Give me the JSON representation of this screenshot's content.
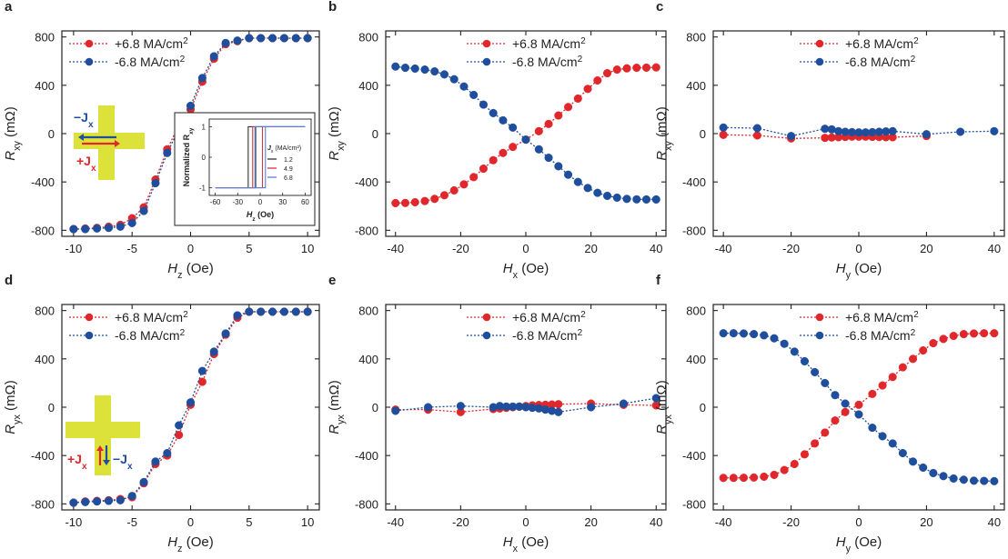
{
  "figure": {
    "colors": {
      "red": "#e0282c",
      "blue": "#1f4e9c",
      "cross": "#dde23a",
      "axis": "#222222"
    }
  },
  "chart_data": [
    {
      "panel": "a",
      "type": "line",
      "xlabel": "H",
      "xlabel_sub": "z",
      "xlabel_unit": "(Oe)",
      "ylabel": "R",
      "ylabel_sub": "xy",
      "ylabel_unit": "(mΩ)",
      "xlim": [
        -11,
        11
      ],
      "ylim": [
        -850,
        850
      ],
      "xticks": [
        -10,
        -5,
        0,
        5,
        10
      ],
      "yticks": [
        -800,
        -400,
        0,
        400,
        800
      ],
      "legend_position": "top-left",
      "series": [
        {
          "name": "+6.8 MA/cm",
          "sup": "2",
          "color": "red",
          "x": [
            -10,
            -9,
            -8,
            -7,
            -6,
            -5,
            -4,
            -3,
            -2,
            -1,
            0,
            1,
            2,
            3,
            4,
            5,
            6,
            7,
            8,
            9,
            10
          ],
          "y": [
            -790,
            -785,
            -780,
            -770,
            -755,
            -700,
            -610,
            -380,
            -130,
            70,
            200,
            430,
            620,
            740,
            765,
            790,
            790,
            790,
            790,
            790,
            790
          ]
        },
        {
          "name": "-6.8 MA/cm",
          "sup": "2",
          "color": "blue",
          "x": [
            -10,
            -9,
            -8,
            -7,
            -6,
            -5,
            -4,
            -3,
            -2,
            -1,
            0,
            1,
            2,
            3,
            4,
            5,
            6,
            7,
            8,
            9,
            10
          ],
          "y": [
            -790,
            -790,
            -785,
            -780,
            -770,
            -740,
            -640,
            -410,
            -160,
            40,
            230,
            460,
            640,
            750,
            770,
            790,
            790,
            790,
            790,
            790,
            790
          ]
        }
      ],
      "schematic": {
        "type": "cross-h",
        "labels": [
          "−J",
          "+J"
        ],
        "subs": [
          "x",
          "x"
        ],
        "colors": [
          "blue",
          "red"
        ]
      },
      "inset": {
        "xlabel": "H",
        "xlabel_sub": "z",
        "xlabel_unit": "(Oe)",
        "ylabel": "Normalized R",
        "ylabel_sub": "xy",
        "xticks": [
          -60,
          -30,
          0,
          30,
          60
        ],
        "yticks": [
          -1,
          0,
          1
        ],
        "legend_title": "J",
        "legend_title_sub": "x",
        "legend_title_unit": "(MA/cm²)",
        "series": [
          {
            "name": "1.2",
            "color": "#333333",
            "switch_up": -6,
            "switch_down": -16
          },
          {
            "name": "4.9",
            "color": "#d13a3a",
            "switch_up": 3,
            "switch_down": -10
          },
          {
            "name": "6.8",
            "color": "#5a7fcf",
            "switch_up": 7,
            "switch_down": -7
          }
        ]
      }
    },
    {
      "panel": "b",
      "type": "line",
      "xlabel": "H",
      "xlabel_sub": "x",
      "xlabel_unit": "(Oe)",
      "ylabel": "R",
      "ylabel_sub": "xy",
      "ylabel_unit": "(mΩ)",
      "xlim": [
        -43,
        43
      ],
      "ylim": [
        -850,
        850
      ],
      "xticks": [
        -40,
        -20,
        0,
        20,
        40
      ],
      "yticks": [
        -800,
        -400,
        0,
        400,
        800
      ],
      "legend_position": "top-center",
      "series": [
        {
          "name": "+6.8 MA/cm",
          "sup": "2",
          "color": "red",
          "x": [
            -40,
            -37,
            -34,
            -31,
            -28,
            -25,
            -22,
            -19,
            -16,
            -13,
            -10,
            -7,
            -4,
            0,
            4,
            7,
            10,
            13,
            16,
            19,
            22,
            25,
            28,
            31,
            34,
            37,
            40
          ],
          "y": [
            -575,
            -574,
            -568,
            -558,
            -540,
            -510,
            -470,
            -420,
            -360,
            -290,
            -220,
            -160,
            -110,
            -50,
            20,
            80,
            150,
            220,
            290,
            370,
            440,
            500,
            530,
            540,
            545,
            546,
            548
          ]
        },
        {
          "name": "-6.8 MA/cm",
          "sup": "2",
          "color": "blue",
          "x": [
            -40,
            -37,
            -34,
            -31,
            -28,
            -25,
            -22,
            -19,
            -16,
            -13,
            -10,
            -7,
            -4,
            0,
            4,
            7,
            10,
            13,
            16,
            19,
            22,
            25,
            28,
            31,
            34,
            37,
            40
          ],
          "y": [
            555,
            545,
            538,
            530,
            515,
            490,
            450,
            390,
            320,
            240,
            170,
            110,
            50,
            -50,
            -130,
            -200,
            -270,
            -340,
            -400,
            -450,
            -490,
            -515,
            -530,
            -540,
            -544,
            -545,
            -545
          ]
        }
      ]
    },
    {
      "panel": "c",
      "type": "line",
      "xlabel": "H",
      "xlabel_sub": "y",
      "xlabel_unit": "(Oe)",
      "ylabel": "R",
      "ylabel_sub": "xy",
      "ylabel_unit": "(mΩ)",
      "xlim": [
        -43,
        43
      ],
      "ylim": [
        -850,
        850
      ],
      "xticks": [
        -40,
        -20,
        0,
        20,
        40
      ],
      "yticks": [
        -800,
        -400,
        0,
        400,
        800
      ],
      "legend_position": "top-center",
      "series": [
        {
          "name": "+6.8 MA/cm",
          "sup": "2",
          "color": "red",
          "x": [
            -40,
            -30,
            -20,
            -10,
            -8,
            -6,
            -4,
            -2,
            0,
            2,
            4,
            6,
            8,
            10,
            20
          ],
          "y": [
            -10,
            -15,
            -40,
            -35,
            -32,
            -30,
            -28,
            -25,
            -25,
            -25,
            -27,
            -28,
            -30,
            -30,
            -20
          ]
        },
        {
          "name": "-6.8 MA/cm",
          "sup": "2",
          "color": "blue",
          "x": [
            -40,
            -30,
            -20,
            -10,
            -8,
            -6,
            -4,
            -2,
            0,
            2,
            4,
            6,
            8,
            10,
            20,
            30,
            40
          ],
          "y": [
            50,
            45,
            -20,
            40,
            35,
            20,
            15,
            12,
            10,
            10,
            12,
            15,
            18,
            20,
            -5,
            15,
            20
          ]
        }
      ]
    },
    {
      "panel": "d",
      "type": "line",
      "xlabel": "H",
      "xlabel_sub": "z",
      "xlabel_unit": "(Oe)",
      "ylabel": "R",
      "ylabel_sub": "yx",
      "ylabel_unit": "(mΩ)",
      "xlim": [
        -11,
        11
      ],
      "ylim": [
        -850,
        850
      ],
      "xticks": [
        -10,
        -5,
        0,
        5,
        10
      ],
      "yticks": [
        -800,
        -400,
        0,
        400,
        800
      ],
      "legend_position": "top-left",
      "series": [
        {
          "name": "+6.8 MA/cm",
          "sup": "2",
          "color": "red",
          "x": [
            -10,
            -9,
            -8,
            -7,
            -6,
            -5,
            -4,
            -3,
            -2,
            -1,
            0,
            1,
            2,
            3,
            4,
            5,
            6,
            7,
            8,
            9,
            10
          ],
          "y": [
            -790,
            -780,
            -775,
            -770,
            -760,
            -745,
            -630,
            -470,
            -400,
            -230,
            20,
            210,
            440,
            600,
            740,
            790,
            790,
            790,
            790,
            790,
            790
          ]
        },
        {
          "name": "-6.8 MA/cm",
          "sup": "2",
          "color": "blue",
          "x": [
            -10,
            -9,
            -8,
            -7,
            -6,
            -5,
            -4,
            -3,
            -2,
            -1,
            0,
            1,
            2,
            3,
            4,
            5,
            6,
            7,
            8,
            9,
            10
          ],
          "y": [
            -790,
            -785,
            -780,
            -775,
            -770,
            -735,
            -620,
            -450,
            -380,
            -150,
            40,
            300,
            460,
            610,
            760,
            790,
            790,
            790,
            790,
            790,
            790
          ]
        }
      ],
      "schematic": {
        "type": "cross-v",
        "labels": [
          "+J",
          "−J"
        ],
        "subs": [
          "x",
          "x"
        ],
        "colors": [
          "red",
          "blue"
        ]
      }
    },
    {
      "panel": "e",
      "type": "line",
      "xlabel": "H",
      "xlabel_sub": "x",
      "xlabel_unit": "(Oe)",
      "ylabel": "R",
      "ylabel_sub": "yx",
      "ylabel_unit": "(mΩ)",
      "xlim": [
        -43,
        43
      ],
      "ylim": [
        -850,
        850
      ],
      "xticks": [
        -40,
        -20,
        0,
        20,
        40
      ],
      "yticks": [
        -800,
        -400,
        0,
        400,
        800
      ],
      "legend_position": "top-center",
      "series": [
        {
          "name": "+6.8 MA/cm",
          "sup": "2",
          "color": "red",
          "x": [
            -40,
            -30,
            -20,
            -10,
            -8,
            -6,
            -4,
            -2,
            0,
            2,
            4,
            6,
            8,
            10,
            20,
            30,
            40
          ],
          "y": [
            -20,
            -20,
            -40,
            -15,
            -10,
            -5,
            0,
            5,
            10,
            15,
            18,
            20,
            22,
            25,
            30,
            20,
            15
          ]
        },
        {
          "name": "-6.8 MA/cm",
          "sup": "2",
          "color": "blue",
          "x": [
            -40,
            -30,
            -20,
            -10,
            -8,
            -6,
            -4,
            -2,
            0,
            2,
            4,
            6,
            8,
            10,
            20,
            30,
            40
          ],
          "y": [
            -30,
            0,
            10,
            0,
            10,
            5,
            5,
            5,
            0,
            -5,
            -10,
            -20,
            -30,
            -40,
            0,
            30,
            75
          ]
        }
      ]
    },
    {
      "panel": "f",
      "type": "line",
      "xlabel": "H",
      "xlabel_sub": "y",
      "xlabel_unit": "(Oe)",
      "ylabel": "R",
      "ylabel_sub": "yx",
      "ylabel_unit": "(mΩ)",
      "xlim": [
        -43,
        43
      ],
      "ylim": [
        -850,
        850
      ],
      "xticks": [
        -40,
        -20,
        0,
        20,
        40
      ],
      "yticks": [
        -800,
        -400,
        0,
        400,
        800
      ],
      "legend_position": "top-center",
      "series": [
        {
          "name": "+6.8 MA/cm",
          "sup": "2",
          "color": "red",
          "x": [
            -40,
            -37,
            -34,
            -31,
            -28,
            -25,
            -22,
            -19,
            -16,
            -13,
            -10,
            -7,
            -4,
            0,
            4,
            7,
            10,
            13,
            16,
            19,
            22,
            25,
            28,
            31,
            34,
            37,
            40
          ],
          "y": [
            -585,
            -585,
            -584,
            -582,
            -575,
            -560,
            -520,
            -470,
            -390,
            -300,
            -210,
            -110,
            -40,
            20,
            110,
            180,
            250,
            330,
            400,
            470,
            530,
            565,
            590,
            605,
            610,
            612,
            612
          ]
        },
        {
          "name": "-6.8 MA/cm",
          "sup": "2",
          "color": "blue",
          "x": [
            -40,
            -37,
            -34,
            -31,
            -28,
            -25,
            -22,
            -19,
            -16,
            -13,
            -10,
            -7,
            -4,
            0,
            4,
            7,
            10,
            13,
            16,
            19,
            22,
            25,
            28,
            31,
            34,
            37,
            40
          ],
          "y": [
            612,
            612,
            610,
            605,
            595,
            570,
            525,
            460,
            380,
            290,
            200,
            100,
            30,
            -60,
            -170,
            -240,
            -300,
            -380,
            -450,
            -500,
            -545,
            -570,
            -590,
            -600,
            -608,
            -610,
            -612
          ]
        }
      ]
    }
  ]
}
